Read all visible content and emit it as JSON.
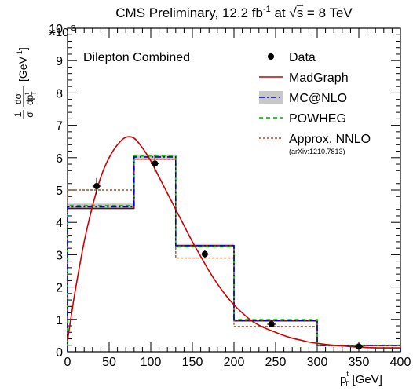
{
  "chart_data": {
    "type": "histogram",
    "title": {
      "prefix": "CMS Preliminary, 12.2 fb",
      "sup": "-1",
      "middle": " at ",
      "sqrt": "s",
      "suffix": " =  8 TeV"
    },
    "xlabel": {
      "main": "p",
      "sup": "t",
      "sub": "T",
      "unit": " [GeV]"
    },
    "ylabel": {
      "frac1_num": "1",
      "frac1_den": "σ",
      "frac2_num": "dσ",
      "frac2_den": "dp",
      "frac2_den_sup": "t",
      "frac2_den_sub": "T",
      "unit": "[GeV",
      "unit_sup": "-1",
      "unit_end": "]"
    },
    "y_exponent": "×10",
    "y_exponent_sup": "-3",
    "annotation": "Dilepton Combined",
    "xlim": [
      0,
      400
    ],
    "ylim": [
      0,
      10
    ],
    "x_ticks": [
      "0",
      "50",
      "100",
      "150",
      "200",
      "250",
      "300",
      "350",
      "400"
    ],
    "y_ticks": [
      "0",
      "1",
      "2",
      "3",
      "4",
      "5",
      "6",
      "7",
      "8",
      "9",
      "10"
    ],
    "bin_edges": [
      0,
      80,
      130,
      200,
      300,
      400
    ],
    "series": [
      {
        "name": "Data",
        "kind": "points",
        "color": "#000000",
        "x": [
          35,
          105,
          165,
          245,
          350
        ],
        "y": [
          5.12,
          5.82,
          3.02,
          0.85,
          0.16
        ],
        "xerr_low": [
          5,
          5,
          5,
          5,
          5
        ],
        "xerr_high": [
          5,
          5,
          5,
          5,
          5
        ],
        "yerr": [
          0.25,
          0.25,
          0.12,
          0.05,
          0.06
        ]
      },
      {
        "name": "MadGraph",
        "kind": "curve",
        "color": "#cc0000",
        "x": [
          0,
          5,
          10,
          20,
          30,
          40,
          50,
          60,
          70,
          80,
          90,
          100,
          110,
          120,
          130,
          140,
          150,
          160,
          170,
          180,
          190,
          200,
          210,
          220,
          230,
          240,
          250,
          260,
          270,
          280,
          290,
          300,
          320,
          340,
          360,
          380,
          400
        ],
        "y": [
          0.35,
          1.2,
          2.0,
          3.4,
          4.5,
          5.4,
          6.0,
          6.4,
          6.63,
          6.6,
          6.3,
          5.9,
          5.4,
          4.9,
          4.4,
          3.9,
          3.4,
          2.95,
          2.5,
          2.1,
          1.75,
          1.45,
          1.2,
          0.98,
          0.82,
          0.7,
          0.6,
          0.5,
          0.42,
          0.36,
          0.3,
          0.26,
          0.2,
          0.16,
          0.13,
          0.12,
          0.12
        ]
      },
      {
        "name": "MC@NLO",
        "kind": "hist",
        "color": "#0000cc",
        "band_color": "#c8c8c8",
        "values": [
          4.48,
          6.02,
          3.28,
          0.97,
          0.2
        ],
        "band": [
          0.1,
          0.08,
          0.05,
          0.03,
          0.01
        ]
      },
      {
        "name": "POWHEG",
        "kind": "hist",
        "color": "#00cc00",
        "values": [
          4.52,
          6.05,
          3.25,
          0.99,
          0.2
        ]
      },
      {
        "name": "Approx. NNLO",
        "kind": "hist",
        "color": "#a0522d",
        "values": [
          5.0,
          5.95,
          2.9,
          0.78,
          0.19
        ]
      },
      {
        "name": "",
        "kind": "hist",
        "color": "#8b0000",
        "values": [
          4.43,
          5.95,
          3.28,
          0.95,
          0.19
        ]
      }
    ],
    "legend": {
      "position": "top-right",
      "entries": [
        {
          "label": "Data",
          "marker": "point"
        },
        {
          "label": "MadGraph",
          "marker": "line"
        },
        {
          "label": "MC@NLO",
          "marker": "band"
        },
        {
          "label": "POWHEG",
          "marker": "dashed"
        },
        {
          "label": "Approx. NNLO",
          "marker": "dotted"
        }
      ],
      "reference": "(arXiv:1210.7813)"
    }
  }
}
